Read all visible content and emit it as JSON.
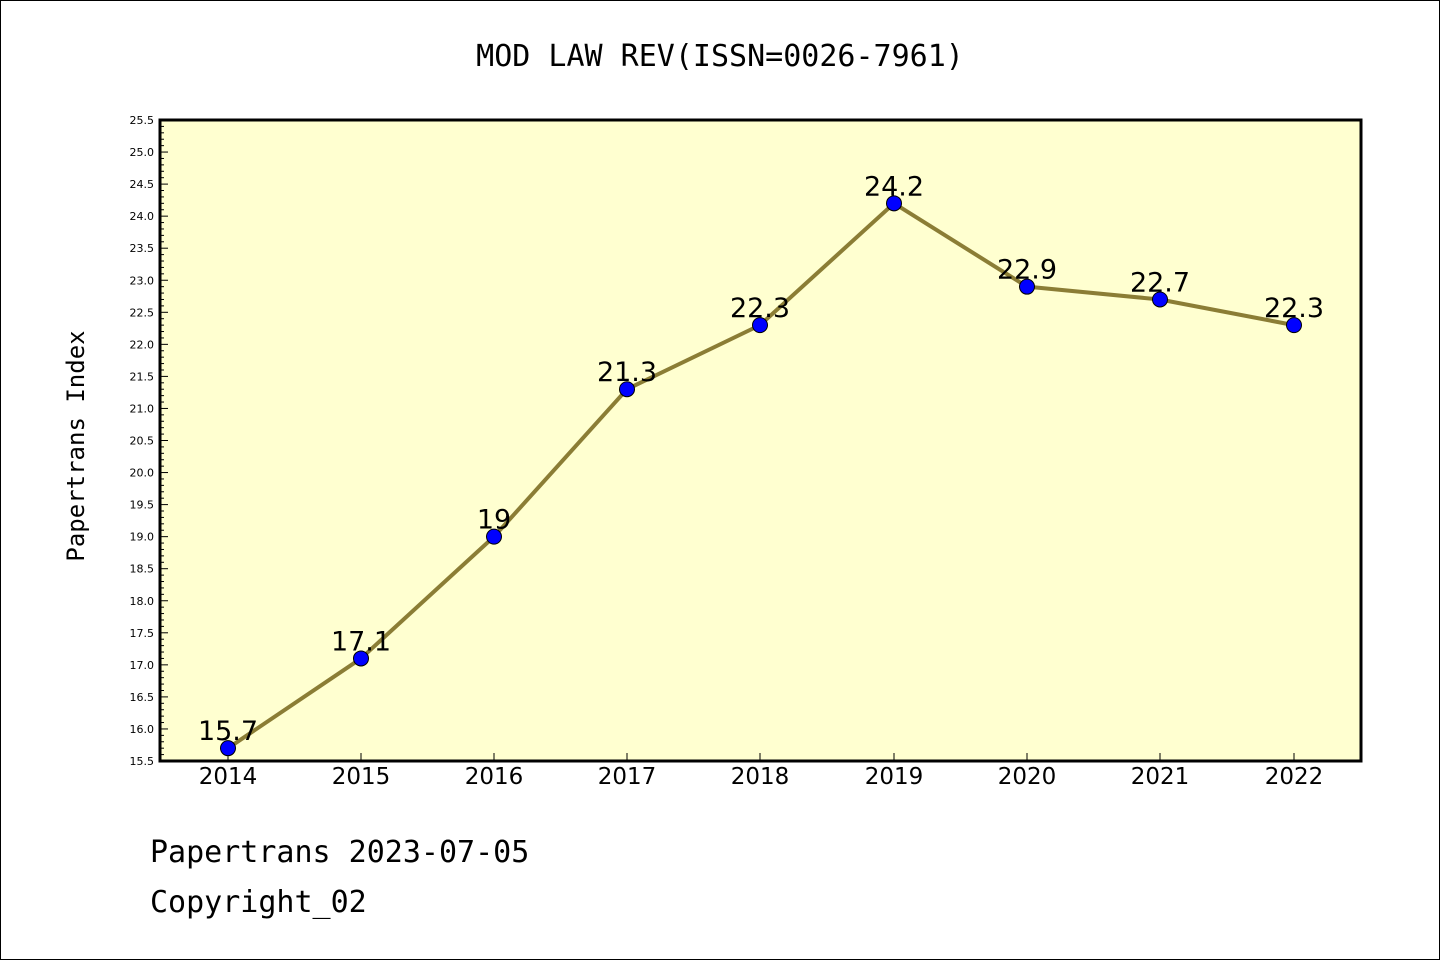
{
  "chart_data": {
    "type": "line",
    "title": "MOD LAW REV(ISSN=0026-7961)",
    "xlabel": "",
    "ylabel": "Papertrans Index",
    "categories": [
      "2014",
      "2015",
      "2016",
      "2017",
      "2018",
      "2019",
      "2020",
      "2021",
      "2022"
    ],
    "series": [
      {
        "values": [
          15.7,
          17.1,
          19.0,
          21.3,
          22.3,
          24.2,
          22.9,
          22.7,
          22.3
        ],
        "data_labels": [
          "15.7",
          "17.1",
          "19",
          "21.3",
          "22.3",
          "24.2",
          "22.9",
          "22.7",
          "22.3"
        ]
      }
    ],
    "ylim": [
      15.5,
      25.5
    ],
    "yticks": [
      "15.5",
      "16.0",
      "16.5",
      "17.0",
      "17.5",
      "18.0",
      "18.5",
      "19.0",
      "19.5",
      "20.0",
      "20.5",
      "21.0",
      "21.5",
      "22.0",
      "22.5",
      "23.0",
      "23.5",
      "24.0",
      "24.5",
      "25.0",
      "25.5"
    ],
    "grid": false,
    "legend": "none",
    "colors": {
      "plot_background": "#ffffd0",
      "line": "#8b7d35",
      "marker": "#0000ff"
    }
  },
  "footer": {
    "date_line": "Papertrans 2023-07-05",
    "copyright": "Copyright_02"
  }
}
